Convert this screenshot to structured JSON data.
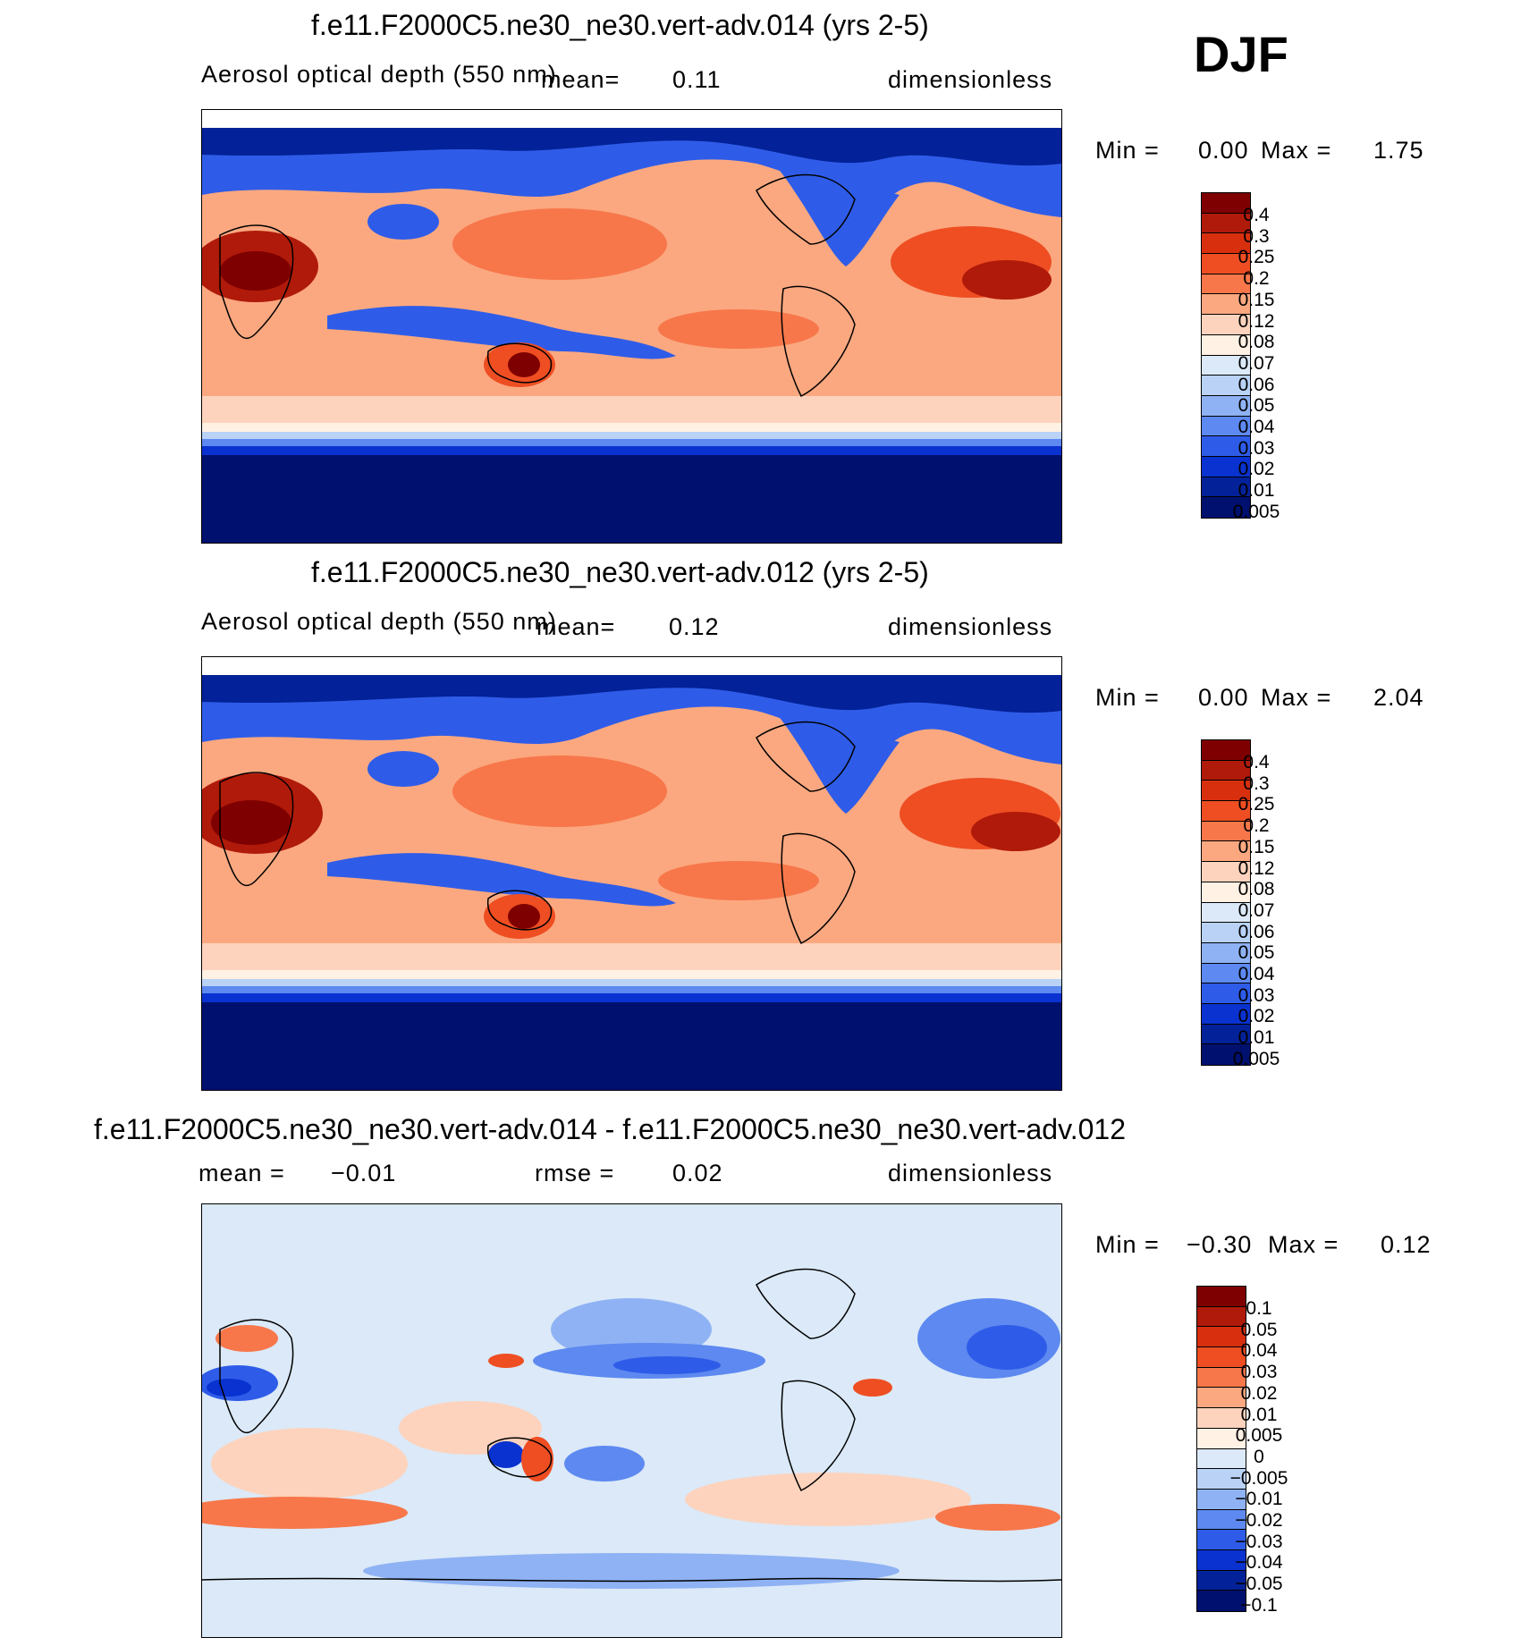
{
  "season": "DJF",
  "panels": [
    {
      "title": "f.e11.F2000C5.ne30_ne30.vert-adv.014 (yrs 2-5)",
      "variable": "Aerosol optical depth (550 nm)",
      "mean_label": "mean=",
      "mean_value": "0.11",
      "units": "dimensionless",
      "min_label": "Min =",
      "min_value": "0.00",
      "max_label": "Max =",
      "max_value": "1.75",
      "colorbar_labels": [
        "0.4",
        "0.3",
        "0.25",
        "0.2",
        "0.15",
        "0.12",
        "0.08",
        "0.07",
        "0.06",
        "0.05",
        "0.04",
        "0.03",
        "0.02",
        "0.01",
        "0.005"
      ]
    },
    {
      "title": "f.e11.F2000C5.ne30_ne30.vert-adv.012 (yrs 2-5)",
      "variable": "Aerosol optical depth (550 nm)",
      "mean_label": "mean=",
      "mean_value": "0.12",
      "units": "dimensionless",
      "min_label": "Min =",
      "min_value": "0.00",
      "max_label": "Max =",
      "max_value": "2.04",
      "colorbar_labels": [
        "0.4",
        "0.3",
        "0.25",
        "0.2",
        "0.15",
        "0.12",
        "0.08",
        "0.07",
        "0.06",
        "0.05",
        "0.04",
        "0.03",
        "0.02",
        "0.01",
        "0.005"
      ]
    },
    {
      "title": "f.e11.F2000C5.ne30_ne30.vert-adv.014 - f.e11.F2000C5.ne30_ne30.vert-adv.012",
      "mean_label": "mean =",
      "mean_value": "−0.01",
      "rmse_label": "rmse =",
      "rmse_value": "0.02",
      "units": "dimensionless",
      "min_label": "Min =",
      "min_value": "−0.30",
      "max_label": "Max =",
      "max_value": "0.12",
      "colorbar_labels": [
        "0.1",
        "0.05",
        "0.04",
        "0.03",
        "0.02",
        "0.01",
        "0.005",
        "0",
        "−0.005",
        "−0.01",
        "−0.02",
        "−0.03",
        "−0.04",
        "−0.05",
        "−0.1"
      ]
    }
  ],
  "colors": {
    "abs_scale": [
      "#7f0000",
      "#b01a0a",
      "#d8300f",
      "#ee4e22",
      "#f7774a",
      "#fba880",
      "#fdd3bd",
      "#fff1e4",
      "#dbe9f8",
      "#b9d2f6",
      "#8fb2f4",
      "#5d89f0",
      "#2e5ce8",
      "#0a32d0",
      "#032198",
      "#00106e"
    ],
    "diff_scale": [
      "#7f0000",
      "#b01a0a",
      "#d8300f",
      "#ee4e22",
      "#f7774a",
      "#fba880",
      "#fdd3bd",
      "#fff1e4",
      "#dbe9f8",
      "#b9d2f6",
      "#8fb2f4",
      "#5d89f0",
      "#2e5ce8",
      "#0a32d0",
      "#032198",
      "#00106e"
    ]
  }
}
